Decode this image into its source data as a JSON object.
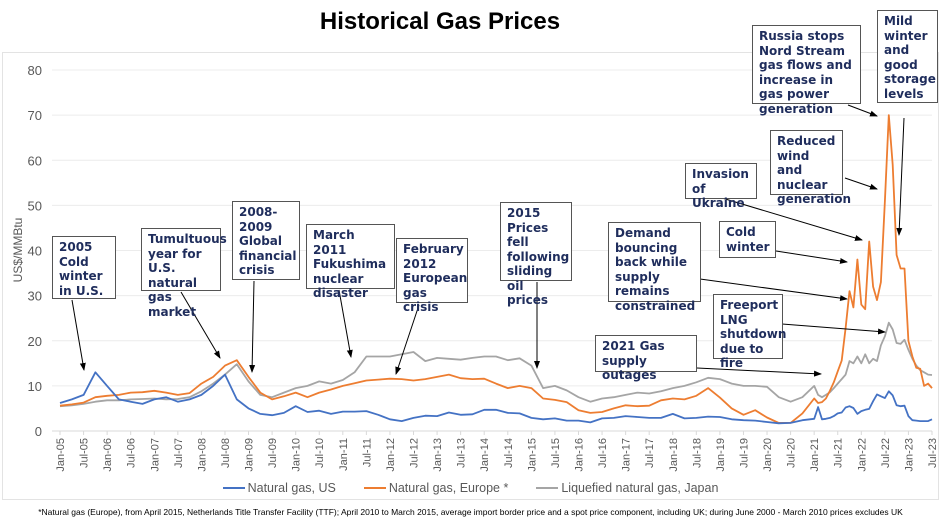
{
  "chart_data": {
    "type": "line",
    "title": "Historical Gas Prices",
    "ylabel": "US$/MMBtu",
    "xlabel": "",
    "ylim": [
      0,
      80
    ],
    "yticks": [
      0,
      10,
      20,
      30,
      40,
      50,
      60,
      70,
      80
    ],
    "grid": true,
    "legend_position": "bottom",
    "xtick_labels": [
      "Jan-05",
      "Jul-05",
      "Jan-06",
      "Jul-06",
      "Jan-07",
      "Jul-07",
      "Jan-08",
      "Jul-08",
      "Jan-09",
      "Jul-09",
      "Jan-10",
      "Jul-10",
      "Jan-11",
      "Jul-11",
      "Jan-12",
      "Jul-12",
      "Jan-13",
      "Jul-13",
      "Jan-14",
      "Jul-14",
      "Jan-15",
      "Jul-15",
      "Jan-16",
      "Jul-16",
      "Jan-17",
      "Jul-17",
      "Jan-18",
      "Jul-18",
      "Jan-19",
      "Jul-19",
      "Jan-20",
      "Jul-20",
      "Jan-21",
      "Jul-21",
      "Jan-22",
      "Jul-22",
      "Jan-23",
      "Jul-23"
    ],
    "x": [
      "2005-01",
      "2005-04",
      "2005-07",
      "2005-10",
      "2006-01",
      "2006-04",
      "2006-07",
      "2006-10",
      "2007-01",
      "2007-04",
      "2007-07",
      "2007-10",
      "2008-01",
      "2008-04",
      "2008-07",
      "2008-10",
      "2009-01",
      "2009-04",
      "2009-07",
      "2009-10",
      "2010-01",
      "2010-04",
      "2010-07",
      "2010-10",
      "2011-01",
      "2011-04",
      "2011-07",
      "2011-10",
      "2012-01",
      "2012-04",
      "2012-07",
      "2012-10",
      "2013-01",
      "2013-04",
      "2013-07",
      "2013-10",
      "2014-01",
      "2014-04",
      "2014-07",
      "2014-10",
      "2015-01",
      "2015-04",
      "2015-07",
      "2015-10",
      "2016-01",
      "2016-04",
      "2016-07",
      "2016-10",
      "2017-01",
      "2017-04",
      "2017-07",
      "2017-10",
      "2018-01",
      "2018-04",
      "2018-07",
      "2018-10",
      "2019-01",
      "2019-04",
      "2019-07",
      "2019-10",
      "2020-01",
      "2020-04",
      "2020-07",
      "2020-10",
      "2021-01",
      "2021-02",
      "2021-03",
      "2021-04",
      "2021-05",
      "2021-06",
      "2021-07",
      "2021-08",
      "2021-09",
      "2021-10",
      "2021-11",
      "2021-12",
      "2022-01",
      "2022-02",
      "2022-03",
      "2022-04",
      "2022-05",
      "2022-06",
      "2022-07",
      "2022-08",
      "2022-09",
      "2022-10",
      "2022-11",
      "2022-12",
      "2023-01",
      "2023-02",
      "2023-03",
      "2023-04",
      "2023-05",
      "2023-06",
      "2023-07"
    ],
    "series": [
      {
        "name": "Natural gas, US",
        "color": "#4472c4",
        "values": [
          6.2,
          7,
          8,
          13,
          10,
          7,
          6.5,
          6,
          7,
          7.5,
          6.5,
          7,
          8,
          10,
          12.5,
          7,
          5,
          3.8,
          3.5,
          4,
          5.5,
          4.2,
          4.5,
          3.8,
          4.3,
          4.3,
          4.4,
          3.6,
          2.6,
          2.2,
          2.9,
          3.4,
          3.3,
          4.1,
          3.6,
          3.7,
          4.7,
          4.7,
          4,
          3.9,
          2.9,
          2.6,
          2.8,
          2.3,
          2.3,
          1.9,
          2.8,
          2.9,
          3.3,
          3.1,
          2.9,
          2.9,
          3.8,
          2.8,
          2.9,
          3.2,
          3.1,
          2.6,
          2.4,
          2.3,
          2,
          1.7,
          1.8,
          2.4,
          2.7,
          5.3,
          2.6,
          2.7,
          2.9,
          3.3,
          3.9,
          4.1,
          5.2,
          5.5,
          5.1,
          3.8,
          4.4,
          4.7,
          4.9,
          6.6,
          8.1,
          7.7,
          7.3,
          8.8,
          7.9,
          5.7,
          5.5,
          5.6,
          3.3,
          2.4,
          2.3,
          2.2,
          2.2,
          2.2,
          2.6
        ]
      },
      {
        "name": "Natural gas, Europe *",
        "color": "#ed7d31",
        "values": [
          5.6,
          5.9,
          6.3,
          7.5,
          7.8,
          8,
          8.5,
          8.6,
          8.9,
          8.5,
          8,
          8.4,
          10.5,
          12,
          14.5,
          15.7,
          12,
          8.5,
          7,
          7.7,
          8.5,
          7.5,
          8.5,
          9.2,
          10,
          10.6,
          11.2,
          11.4,
          11.6,
          11.5,
          11.2,
          11.5,
          12,
          12.5,
          11.7,
          11.5,
          11.6,
          10.5,
          9.5,
          10,
          9.5,
          7.2,
          6.9,
          6.4,
          4.6,
          4,
          4.2,
          5,
          5.7,
          5.5,
          5.6,
          6.8,
          7.2,
          7,
          7.8,
          9.5,
          7.4,
          5,
          3.6,
          4.6,
          3,
          1.8,
          1.8,
          3.9,
          7.2,
          6.2,
          6.4,
          7.2,
          8.9,
          10.8,
          13.2,
          15.6,
          22.8,
          31,
          27.4,
          38,
          28,
          27,
          42,
          32,
          29,
          33,
          51,
          70,
          59,
          39,
          36,
          36,
          20,
          16.5,
          14,
          13.8,
          10,
          10.5,
          9.5
        ]
      },
      {
        "name": "Liquefied natural gas, Japan",
        "color": "#a5a5a5",
        "values": [
          5.5,
          5.7,
          6,
          6.5,
          6.8,
          6.8,
          7,
          7.1,
          7.2,
          7,
          7.1,
          7.5,
          8.8,
          10.5,
          12.5,
          14.8,
          11,
          8,
          7.5,
          8.5,
          9.5,
          10,
          11,
          10.5,
          11.3,
          13,
          16.5,
          16.5,
          16.5,
          17,
          17.5,
          15.5,
          16.2,
          16,
          15.8,
          16.2,
          16.5,
          16.5,
          15.7,
          16.1,
          14.5,
          9.5,
          10,
          9,
          7.5,
          6.5,
          7.2,
          7.5,
          8,
          8.5,
          8.3,
          8.8,
          9.5,
          10,
          10.8,
          11.8,
          11.5,
          10.5,
          10,
          10,
          9.8,
          7.5,
          6.5,
          7.5,
          10,
          8,
          7.5,
          8,
          8.6,
          9.5,
          10.5,
          11.5,
          12.5,
          15.5,
          15,
          16.5,
          15,
          17,
          15,
          16,
          15.5,
          19,
          21,
          24,
          22.5,
          19.5,
          19.3,
          20.2,
          18,
          16,
          14.5,
          13.5,
          13,
          12.5,
          12.4
        ]
      }
    ],
    "annotations": [
      "2005 Cold winter in U.S.",
      "Tumultuous year for U.S. natural gas market",
      "2008-2009 Global financial crisis",
      "March 2011 Fukushima nuclear disaster",
      "February 2012 European gas crisis",
      "2015 Prices fell following sliding oil prices",
      "2021 Gas supply outages",
      "Demand bouncing back while supply remains constrained",
      "Cold winter",
      "Invasion of Ukraine",
      "Freeport LNG shutdown due to fire",
      "Reduced wind and nuclear generation",
      "Russia stops Nord Stream gas flows and increase in gas power generation",
      "Mild winter and good storage levels"
    ],
    "footnote": "*Natural gas (Europe), from April 2015, Netherlands Title Transfer Facility (TTF); April 2010 to March 2015, average import border price and a spot price component, including UK; during June 2000 - March 2010 prices excludes UK"
  }
}
